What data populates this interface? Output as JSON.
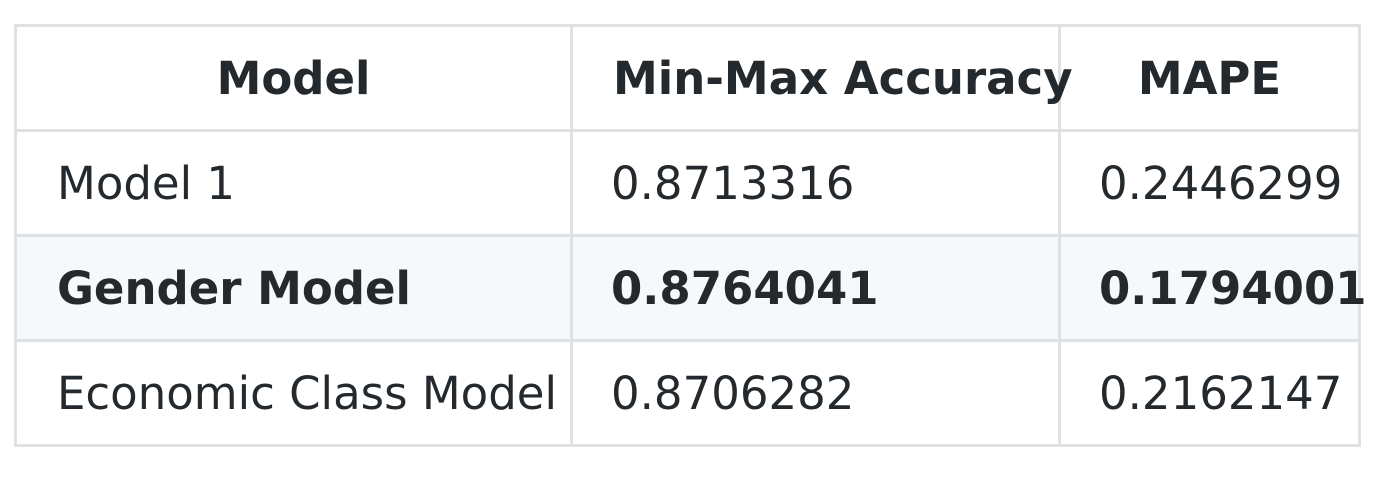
{
  "table": {
    "headers": [
      "Model",
      "Min-Max Accuracy",
      "MAPE"
    ],
    "rows": [
      {
        "model": "Model 1",
        "minmax_accuracy": "0.8713316",
        "mape": "0.2446299",
        "bold": false
      },
      {
        "model": "Gender Model",
        "minmax_accuracy": "0.8764041",
        "mape": "0.1794001",
        "bold": true
      },
      {
        "model": "Economic Class Model",
        "minmax_accuracy": "0.8706282",
        "mape": "0.2162147",
        "bold": false
      }
    ]
  },
  "colors": {
    "border": "#dfe2e5",
    "stripe": "#f6f8fa",
    "text": "#24292e"
  }
}
